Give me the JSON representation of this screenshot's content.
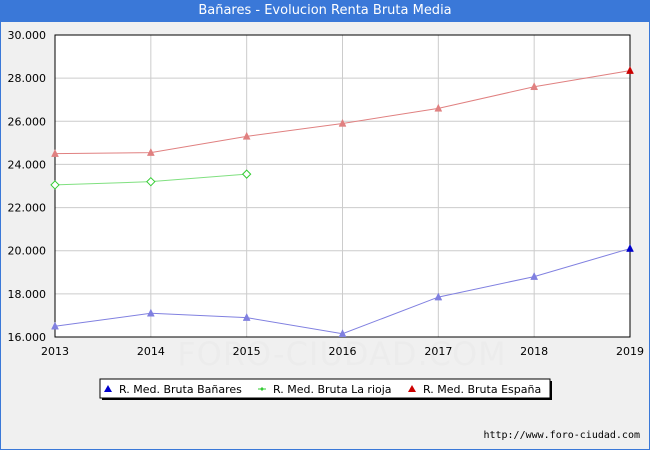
{
  "window": {
    "title": "Bañares - Evolucion Renta Bruta Media"
  },
  "footer": {
    "url": "http://www.foro-ciudad.com"
  },
  "watermark": "FORO-CIUDAD.COM",
  "chart_data": {
    "type": "line",
    "title": "Bañares - Evolucion Renta Bruta Media",
    "xlabel": "",
    "ylabel": "",
    "x": [
      2013,
      2014,
      2015,
      2016,
      2017,
      2018,
      2019
    ],
    "xticks": [
      "2013",
      "2014",
      "2015",
      "2016",
      "2017",
      "2018",
      "2019"
    ],
    "ylim": [
      16000,
      30000
    ],
    "yticks": [
      16000,
      18000,
      20000,
      22000,
      24000,
      26000,
      28000,
      30000
    ],
    "ytick_labels": [
      "16.000",
      "18.000",
      "20.000",
      "22.000",
      "24.000",
      "26.000",
      "28.000",
      "30.000"
    ],
    "grid": true,
    "legend_position": "bottom",
    "series": [
      {
        "name": "R. Med. Bruta Bañares",
        "color": "#0000cc",
        "line_color": "#8080e0",
        "marker": "triangle",
        "values": [
          16500,
          17100,
          16900,
          16150,
          17850,
          18800,
          20100
        ]
      },
      {
        "name": "R. Med. Bruta La rioja",
        "color": "#33cc33",
        "line_color": "#80e080",
        "marker": "diamond",
        "values": [
          23050,
          23200,
          23550,
          null,
          null,
          null,
          null
        ]
      },
      {
        "name": "R. Med. Bruta España",
        "color": "#cc0000",
        "line_color": "#e08080",
        "marker": "triangle",
        "values": [
          24500,
          24550,
          25300,
          25900,
          26600,
          27600,
          28350
        ]
      }
    ]
  }
}
